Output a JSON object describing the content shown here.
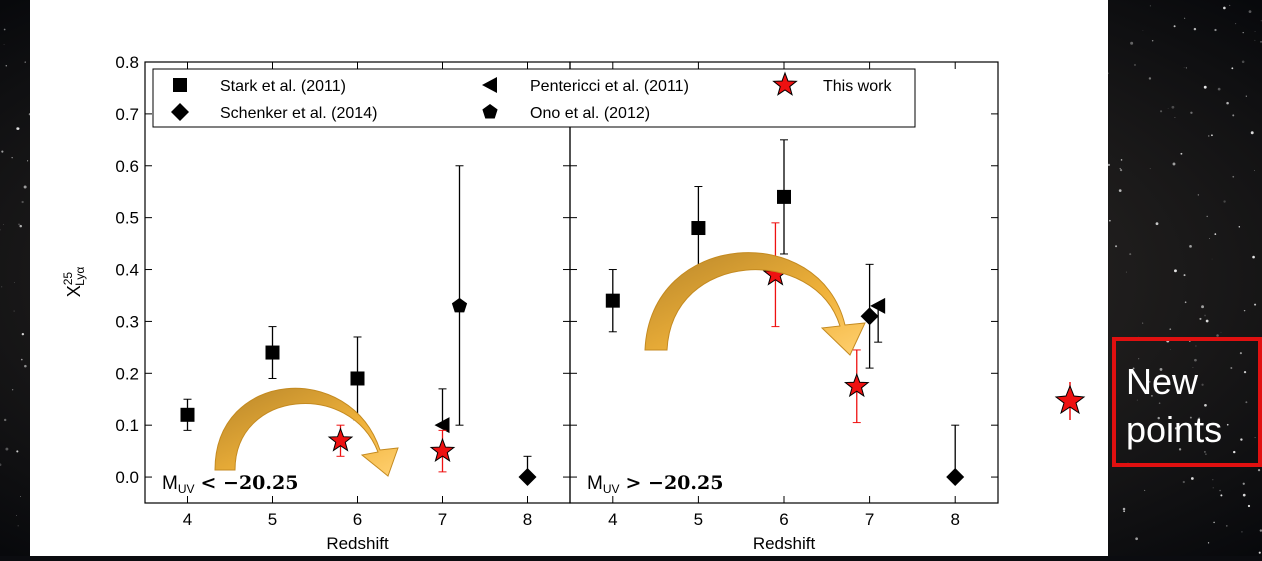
{
  "chart_data": {
    "type": "scatter",
    "ylabel": {
      "main": "X",
      "sup": "25",
      "sub": "Lyα"
    },
    "ylim": [
      -0.05,
      0.8
    ],
    "yticks": [
      {
        "value": 0,
        "label": "0.0"
      },
      {
        "value": 0.1,
        "label": "0.1"
      },
      {
        "value": 0.2,
        "label": "0.2"
      },
      {
        "value": 0.3,
        "label": "0.3"
      },
      {
        "value": 0.4,
        "label": "0.4"
      },
      {
        "value": 0.5,
        "label": "0.5"
      },
      {
        "value": 0.6,
        "label": "0.6"
      },
      {
        "value": 0.7,
        "label": "0.7"
      },
      {
        "value": 0.8,
        "label": "0.8"
      }
    ],
    "series": [
      {
        "name": "Stark et al. (2011)",
        "color": "#000000",
        "marker": "square"
      },
      {
        "name": "Schenker et al. (2014)",
        "color": "#000000",
        "marker": "diamond"
      },
      {
        "name": "Pentericci et al. (2011)",
        "color": "#000000",
        "marker": "triangle-left"
      },
      {
        "name": "Ono et al. (2012)",
        "color": "#000000",
        "marker": "pentagon"
      },
      {
        "name": "This work",
        "color": "#ee1111",
        "marker": "star"
      }
    ],
    "panels": [
      {
        "label": {
          "main": "M",
          "sub": "UV",
          "rest": "< −20.25"
        },
        "xlabel": "Redshift",
        "xlim": [
          3.5,
          8.5
        ],
        "xticks": [
          4,
          5,
          6,
          7,
          8
        ],
        "series": [
          {
            "x": [
              4,
              5,
              6
            ],
            "values": [
              0.12,
              0.24,
              0.19
            ],
            "errors": [
              [
                0.03,
                0.03
              ],
              [
                0.05,
                0.05
              ],
              [
                0.08,
                0.08
              ]
            ]
          },
          {
            "x": [
              8
            ],
            "values": [
              0.0
            ],
            "errors": [
              [
                0,
                0.04
              ]
            ]
          },
          {
            "x": [
              7
            ],
            "values": [
              0.1
            ],
            "errors": [
              [
                0,
                0.07
              ]
            ]
          },
          {
            "x": [
              7.2
            ],
            "values": [
              0.33
            ],
            "errors": [
              [
                0.23,
                0.27
              ]
            ]
          },
          {
            "x": [
              5.8,
              7.0
            ],
            "values": [
              0.07,
              0.05
            ],
            "errors": [
              [
                0.03,
                0.03
              ],
              [
                0.04,
                0.04
              ]
            ]
          }
        ]
      },
      {
        "label": {
          "main": "M",
          "sub": "UV",
          "rest": "> −20.25"
        },
        "xlabel": "Redshift",
        "xlim": [
          3.5,
          8.5
        ],
        "xticks": [
          4,
          5,
          6,
          7,
          8
        ],
        "series": [
          {
            "x": [
              4,
              5,
              6
            ],
            "values": [
              0.34,
              0.48,
              0.54
            ],
            "errors": [
              [
                0.06,
                0.06
              ],
              [
                0.08,
                0.08
              ],
              [
                0.11,
                0.11
              ]
            ]
          },
          {
            "x": [
              7,
              8
            ],
            "values": [
              0.31,
              0.0
            ],
            "errors": [
              [
                0.1,
                0.1
              ],
              [
                0,
                0.1
              ]
            ]
          },
          {
            "x": [
              7.1
            ],
            "values": [
              0.33
            ],
            "errors": [
              [
                0.07,
                0
              ]
            ]
          },
          {
            "x": [],
            "values": [],
            "errors": []
          },
          {
            "x": [
              5.9,
              6.85
            ],
            "values": [
              0.39,
              0.175
            ],
            "errors": [
              [
                0.1,
                0.1
              ],
              [
                0.07,
                0.07
              ]
            ]
          }
        ]
      }
    ]
  },
  "callout": [
    "New",
    "points"
  ]
}
